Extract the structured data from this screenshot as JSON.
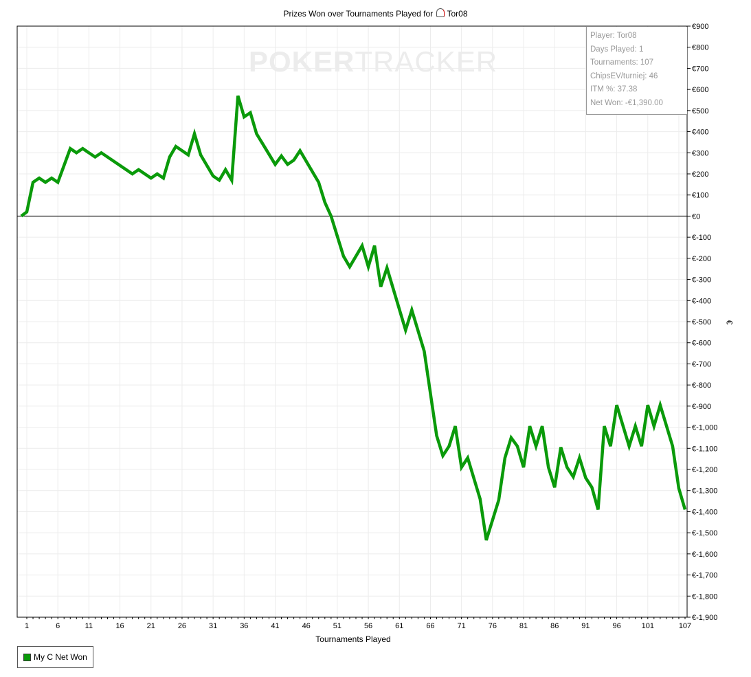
{
  "chart_data": {
    "type": "line",
    "title": "Prizes Won over Tournaments Played for",
    "player": "Tor08",
    "xlabel": "Tournaments Played",
    "ylabel": "€",
    "xlim": [
      0,
      107
    ],
    "ylim": [
      -1900,
      900
    ],
    "x_ticks": [
      1,
      6,
      11,
      16,
      21,
      26,
      31,
      36,
      41,
      46,
      51,
      56,
      61,
      66,
      71,
      76,
      81,
      86,
      91,
      96,
      101,
      107
    ],
    "y_ticks": [
      900,
      800,
      700,
      600,
      500,
      400,
      300,
      200,
      100,
      0,
      -100,
      -200,
      -300,
      -400,
      -500,
      -600,
      -700,
      -800,
      -900,
      -1000,
      -1100,
      -1200,
      -1300,
      -1400,
      -1500,
      -1600,
      -1700,
      -1800,
      -1900
    ],
    "y_tick_labels": [
      "€900",
      "€800",
      "€700",
      "€600",
      "€500",
      "€400",
      "€300",
      "€200",
      "€100",
      "€0",
      "€-100",
      "€-200",
      "€-300",
      "€-400",
      "€-500",
      "€-600",
      "€-700",
      "€-800",
      "€-900",
      "€-1,000",
      "€-1,100",
      "€-1,200",
      "€-1,300",
      "€-1,400",
      "€-1,500",
      "€-1,600",
      "€-1,700",
      "€-1,800",
      "€-1,900"
    ],
    "grid": true,
    "legend_position": "bottom-left",
    "series": [
      {
        "name": "My C Net Won",
        "color": "#0a9a0a",
        "points": [
          [
            0,
            0
          ],
          [
            1,
            20
          ],
          [
            2,
            160
          ],
          [
            3,
            180
          ],
          [
            4,
            160
          ],
          [
            5,
            180
          ],
          [
            6,
            160
          ],
          [
            8,
            320
          ],
          [
            9,
            300
          ],
          [
            10,
            320
          ],
          [
            12,
            280
          ],
          [
            13,
            300
          ],
          [
            18,
            200
          ],
          [
            19,
            220
          ],
          [
            21,
            180
          ],
          [
            22,
            200
          ],
          [
            23,
            180
          ],
          [
            24,
            280
          ],
          [
            25,
            330
          ],
          [
            27,
            290
          ],
          [
            28,
            390
          ],
          [
            29,
            290
          ],
          [
            31,
            190
          ],
          [
            32,
            170
          ],
          [
            33,
            220
          ],
          [
            34,
            170
          ],
          [
            35,
            570
          ],
          [
            36,
            470
          ],
          [
            37,
            490
          ],
          [
            38,
            390
          ],
          [
            41,
            245
          ],
          [
            42,
            285
          ],
          [
            43,
            245
          ],
          [
            44,
            265
          ],
          [
            45,
            310
          ],
          [
            48,
            160
          ],
          [
            49,
            65
          ],
          [
            50,
            0
          ],
          [
            52,
            -190
          ],
          [
            53,
            -240
          ],
          [
            55,
            -140
          ],
          [
            56,
            -240
          ],
          [
            57,
            -140
          ],
          [
            58,
            -335
          ],
          [
            59,
            -245
          ],
          [
            62,
            -540
          ],
          [
            63,
            -445
          ],
          [
            65,
            -640
          ],
          [
            67,
            -1040
          ],
          [
            68,
            -1135
          ],
          [
            69,
            -1090
          ],
          [
            70,
            -995
          ],
          [
            71,
            -1190
          ],
          [
            72,
            -1145
          ],
          [
            74,
            -1340
          ],
          [
            75,
            -1535
          ],
          [
            77,
            -1345
          ],
          [
            78,
            -1145
          ],
          [
            79,
            -1050
          ],
          [
            80,
            -1090
          ],
          [
            81,
            -1190
          ],
          [
            82,
            -995
          ],
          [
            83,
            -1090
          ],
          [
            84,
            -995
          ],
          [
            85,
            -1190
          ],
          [
            86,
            -1285
          ],
          [
            87,
            -1095
          ],
          [
            88,
            -1190
          ],
          [
            89,
            -1235
          ],
          [
            90,
            -1145
          ],
          [
            91,
            -1240
          ],
          [
            92,
            -1285
          ],
          [
            93,
            -1390
          ],
          [
            94,
            -995
          ],
          [
            95,
            -1090
          ],
          [
            96,
            -895
          ],
          [
            98,
            -1090
          ],
          [
            99,
            -995
          ],
          [
            100,
            -1090
          ],
          [
            101,
            -895
          ],
          [
            102,
            -995
          ],
          [
            103,
            -895
          ],
          [
            105,
            -1090
          ],
          [
            106,
            -1290
          ],
          [
            107,
            -1390
          ]
        ]
      }
    ]
  },
  "stats_box": {
    "player": "Player: Tor08",
    "days": "Days Played: 1",
    "tournaments": "Tournaments: 107",
    "chipsev": "ChipsEV/turniej: 46",
    "itm": "ITM %: 37.38",
    "net_won": "Net Won: -€1,390.00"
  },
  "watermark": {
    "bold": "POKER",
    "thin": "TRACKER"
  }
}
